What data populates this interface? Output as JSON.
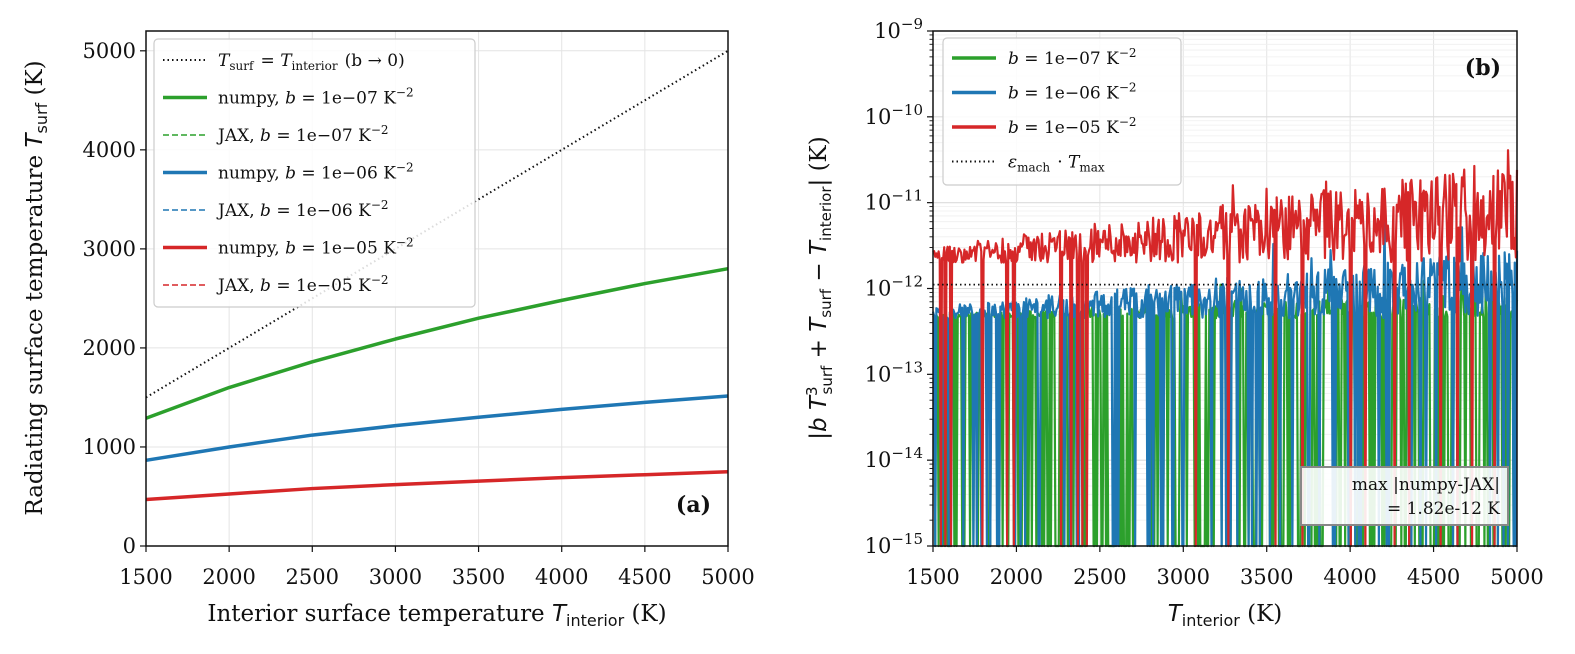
{
  "chart_data": [
    {
      "type": "line",
      "panel_label": "(a)",
      "xlabel": "Interior surface temperature  T_interior (K)",
      "ylabel": "Radiating surface temperature  T_surf (K)",
      "xlim": [
        1500,
        5000
      ],
      "ylim": [
        0,
        5200
      ],
      "xticks": [
        1500,
        2000,
        2500,
        3000,
        3500,
        4000,
        4500,
        5000
      ],
      "yticks": [
        0,
        1000,
        2000,
        3000,
        4000,
        5000
      ],
      "grid": true,
      "legend_position": "upper-left",
      "series": [
        {
          "name": "T_surf = T_interior (b → 0)",
          "color": "#111111",
          "dash": "dotted",
          "width": 2,
          "x": [
            1500,
            5000
          ],
          "y": [
            1500,
            5000
          ]
        },
        {
          "name": "numpy, b = 1e−07 K^−2",
          "color": "#2ca02c",
          "dash": "solid",
          "width": 3.5,
          "x": [
            1500,
            2000,
            2500,
            3000,
            3500,
            4000,
            4500,
            5000
          ],
          "y": [
            1290,
            1600,
            1860,
            2090,
            2300,
            2480,
            2650,
            2800
          ]
        },
        {
          "name": "JAX,   b = 1e−07 K^−2",
          "color": "#2ca02c",
          "dash": "dashed",
          "width": 1.5,
          "x": [
            1500,
            2000,
            2500,
            3000,
            3500,
            4000,
            4500,
            5000
          ],
          "y": [
            1290,
            1600,
            1860,
            2090,
            2300,
            2480,
            2650,
            2800
          ]
        },
        {
          "name": "numpy, b = 1e−06 K^−2",
          "color": "#1f77b4",
          "dash": "solid",
          "width": 3.5,
          "x": [
            1500,
            2000,
            2500,
            3000,
            3500,
            4000,
            4500,
            5000
          ],
          "y": [
            865,
            1000,
            1120,
            1215,
            1300,
            1380,
            1450,
            1515
          ]
        },
        {
          "name": "JAX,   b = 1e−06 K^−2",
          "color": "#1f77b4",
          "dash": "dashed",
          "width": 1.5,
          "x": [
            1500,
            2000,
            2500,
            3000,
            3500,
            4000,
            4500,
            5000
          ],
          "y": [
            865,
            1000,
            1120,
            1215,
            1300,
            1380,
            1450,
            1515
          ]
        },
        {
          "name": "numpy, b = 1e−05 K^−2",
          "color": "#d62728",
          "dash": "solid",
          "width": 3.5,
          "x": [
            1500,
            2000,
            2500,
            3000,
            3500,
            4000,
            4500,
            5000
          ],
          "y": [
            470,
            525,
            580,
            620,
            655,
            690,
            720,
            750
          ]
        },
        {
          "name": "JAX,   b = 1e−05 K^−2",
          "color": "#d62728",
          "dash": "dashed",
          "width": 1.5,
          "x": [
            1500,
            2000,
            2500,
            3000,
            3500,
            4000,
            4500,
            5000
          ],
          "y": [
            470,
            525,
            580,
            620,
            655,
            690,
            720,
            750
          ]
        }
      ]
    },
    {
      "type": "line",
      "panel_label": "(b)",
      "xlabel": "T_interior (K)",
      "ylabel": "|b T_surf^3 + T_surf − T_interior|  (K)",
      "xlim": [
        1500,
        5000
      ],
      "ylim": [
        1e-15,
        1e-09
      ],
      "yscale": "log",
      "xticks": [
        1500,
        2000,
        2500,
        3000,
        3500,
        4000,
        4500,
        5000
      ],
      "yticks": [
        "10^−15",
        "10^−14",
        "10^−13",
        "10^−12",
        "10^−11",
        "10^−10",
        "10^−9"
      ],
      "grid": true,
      "legend_position": "upper-left",
      "annotation": [
        "max |numpy-JAX|",
        "= 1.82e-12 K"
      ],
      "series": [
        {
          "name": "b = 1e−07 K^−2",
          "color": "#2ca02c",
          "style": "noisy",
          "typical_range": [
            4.5e-13,
            9e-13
          ],
          "max": 2.8e-12,
          "floor": 1e-15,
          "dropout_fraction": 0.35
        },
        {
          "name": "b = 1e−06 K^−2",
          "color": "#1f77b4",
          "style": "noisy",
          "typical_range": [
            4.5e-13,
            3e-12
          ],
          "max": 1.8e-11,
          "floor": 1e-15,
          "dropout_fraction": 0.12
        },
        {
          "name": "b = 1e−05 K^−2",
          "color": "#d62728",
          "style": "noisy",
          "typical_range": [
            2e-12,
            3e-11
          ],
          "max": 8e-11,
          "floor": 1e-15,
          "dropout_fraction": 0.05
        },
        {
          "name": "ε_mach · T_max",
          "color": "#111111",
          "dash": "dotted",
          "value": 1.11e-12
        }
      ]
    }
  ]
}
